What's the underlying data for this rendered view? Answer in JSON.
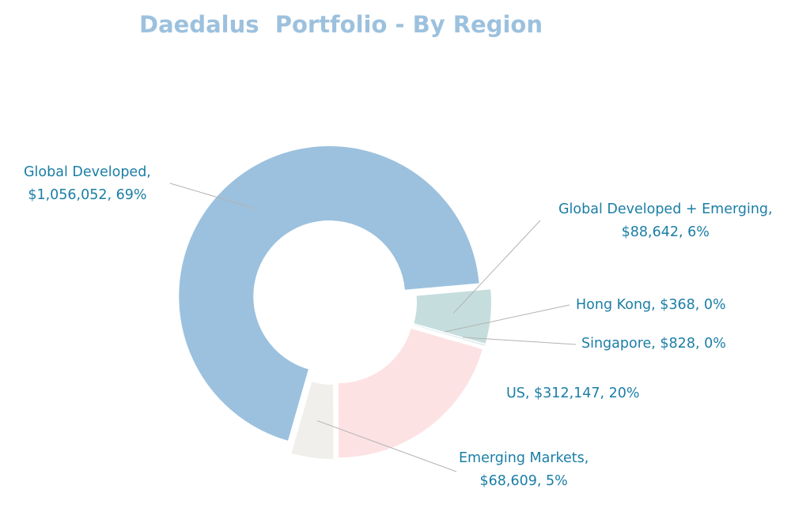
{
  "chart_data": {
    "type": "pie",
    "subtype": "donut",
    "title": "Daedalus  Portfolio - By Region",
    "slices": [
      {
        "name": "Global Developed + Emerging",
        "value": 88642,
        "percent": "6%",
        "value_label": "$88,642",
        "color": "#c5dedd"
      },
      {
        "name": "Hong Kong",
        "value": 368,
        "percent": "0%",
        "value_label": "$368",
        "color": "#c5dedd"
      },
      {
        "name": "Singapore",
        "value": 828,
        "percent": "0%",
        "value_label": "$828",
        "color": "#c5dedd"
      },
      {
        "name": "US",
        "value": 312147,
        "percent": "20%",
        "value_label": "$312,147",
        "color": "#fde2e4"
      },
      {
        "name": "Emerging Markets",
        "value": 68609,
        "percent": "5%",
        "value_label": "$68,609",
        "color": "#f0efeb"
      },
      {
        "name": "Global Developed",
        "value": 1056052,
        "percent": "69%",
        "value_label": "$1,056,052",
        "color": "#9cc1de"
      }
    ],
    "labels": {
      "gde": [
        "Global Developed + Emerging,",
        "$88,642, 6%"
      ],
      "hk": "Hong Kong, $368, 0%",
      "sg": "Singapore, $828, 0%",
      "us": "US, $312,147, 20%",
      "em": [
        "Emerging Markets,",
        "$68,609, 5%"
      ],
      "gd": [
        "Global Developed,",
        "$1,056,052, 69%"
      ]
    },
    "legend": "none"
  }
}
